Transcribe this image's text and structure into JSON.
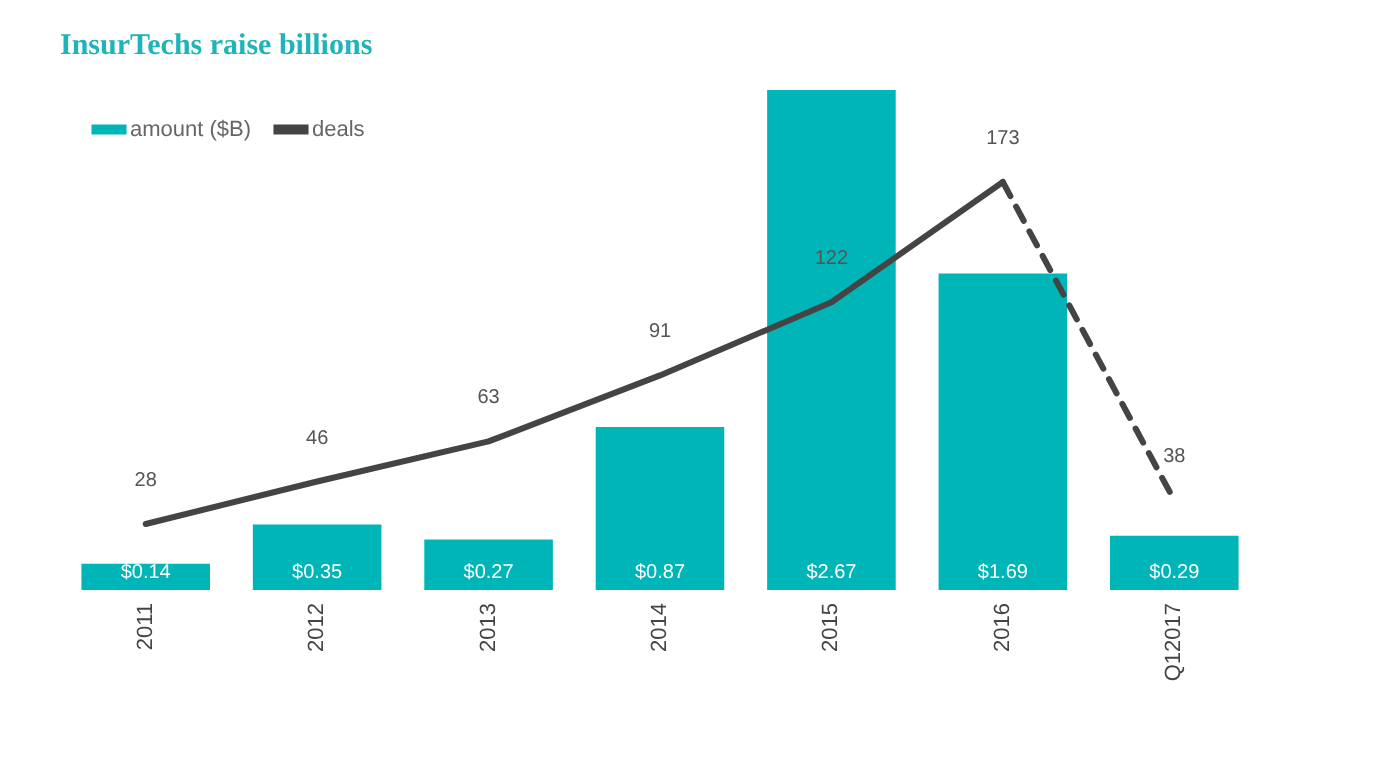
{
  "chart_data": {
    "type": "bar",
    "title": "InsurTechs raise billions",
    "legend": "top left",
    "grid": false,
    "categories": [
      "2011",
      "2012",
      "2013",
      "2014",
      "2015",
      "2016",
      "Q12017"
    ],
    "series": [
      {
        "name": "amount ($B)",
        "color": "#00b5b8",
        "values": [
          0.14,
          0.35,
          0.27,
          0.87,
          2.67,
          1.69,
          0.29
        ],
        "value_labels": [
          "$0.14",
          "$0.35",
          "$0.27",
          "$0.87",
          "$2.67",
          "$1.69",
          "$0.29"
        ]
      },
      {
        "name": "deals",
        "type": "line",
        "axis": "y2",
        "line_style": "solid",
        "color": "#444444",
        "values": [
          28,
          46,
          63,
          91,
          122,
          173,
          null
        ],
        "value_labels": [
          "28",
          "46",
          "63",
          "91",
          "122",
          "173",
          null
        ]
      },
      {
        "type": "line",
        "axis": "y2",
        "line_style": "dashed",
        "color": "#444444",
        "values": [
          null,
          null,
          null,
          null,
          null,
          173,
          38
        ],
        "value_labels": [
          null,
          null,
          null,
          null,
          null,
          null,
          "38"
        ]
      }
    ]
  }
}
